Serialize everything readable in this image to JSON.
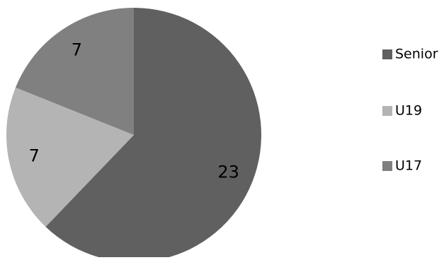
{
  "chart_data": {
    "type": "pie",
    "categories": [
      "Senior",
      "U19",
      "U17"
    ],
    "values": [
      23,
      7,
      7
    ],
    "colors": [
      "#606060",
      "#b4b4b4",
      "#808080"
    ],
    "data_labels": [
      "23",
      "7",
      "7"
    ],
    "legend": {
      "placement": "right",
      "entries": [
        "Senior",
        "U19",
        "U17"
      ]
    },
    "title": "",
    "start": "12 o'clock",
    "direction": "clockwise"
  }
}
